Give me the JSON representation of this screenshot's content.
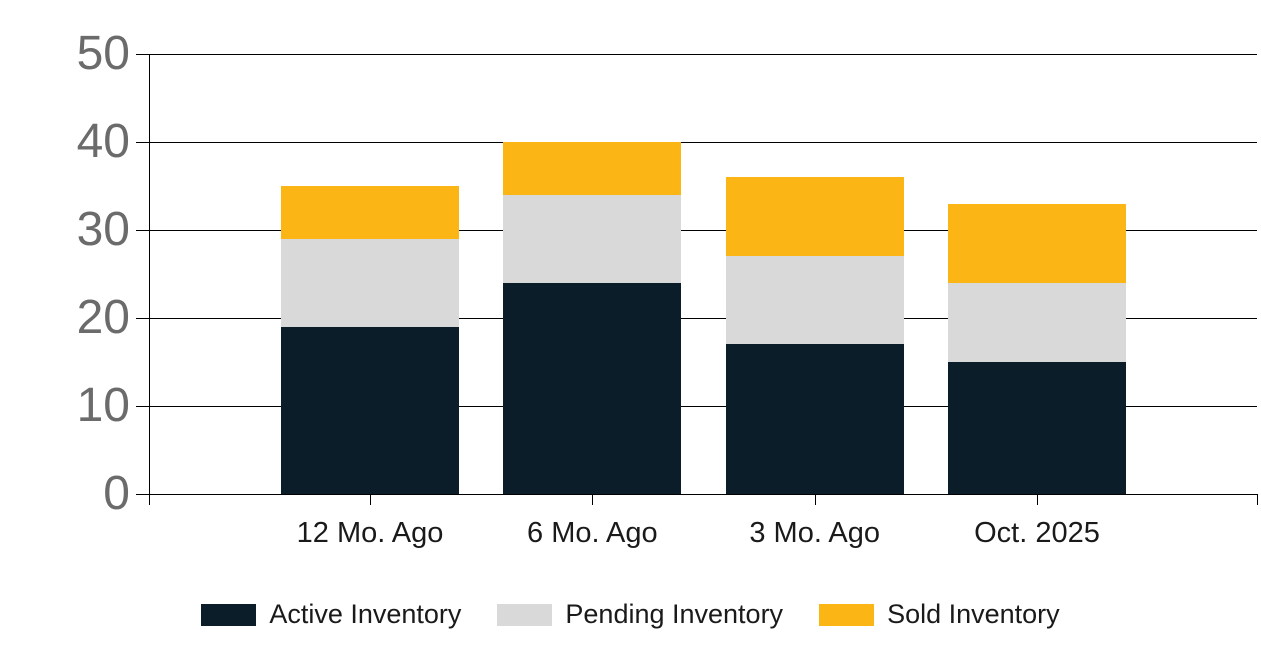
{
  "chart_data": {
    "type": "bar",
    "stacked": true,
    "title": "",
    "xlabel": "",
    "ylabel": "",
    "categories": [
      "12 Mo. Ago",
      "6 Mo. Ago",
      "3 Mo. Ago",
      "Oct. 2025"
    ],
    "series": [
      {
        "name": "Active Inventory",
        "color": "#0B1D29",
        "values": [
          19,
          24,
          17,
          15
        ]
      },
      {
        "name": "Pending Inventory",
        "color": "#D9D9D9",
        "values": [
          10,
          10,
          10,
          9
        ]
      },
      {
        "name": "Sold Inventory",
        "color": "#FBB615",
        "values": [
          6,
          6,
          9,
          9
        ]
      }
    ],
    "totals": [
      35,
      40,
      36,
      33
    ],
    "ylim": [
      0,
      50
    ],
    "yticks": [
      0,
      10,
      20,
      30,
      40,
      50
    ],
    "grid": true,
    "legend_position": "bottom",
    "colors": {
      "background": "#FFFFFF",
      "gridline": "#000000",
      "y_tick_label": "#6B6B6B",
      "x_tick_label": "#1A1A1A",
      "legend_text": "#1A1A1A"
    }
  }
}
